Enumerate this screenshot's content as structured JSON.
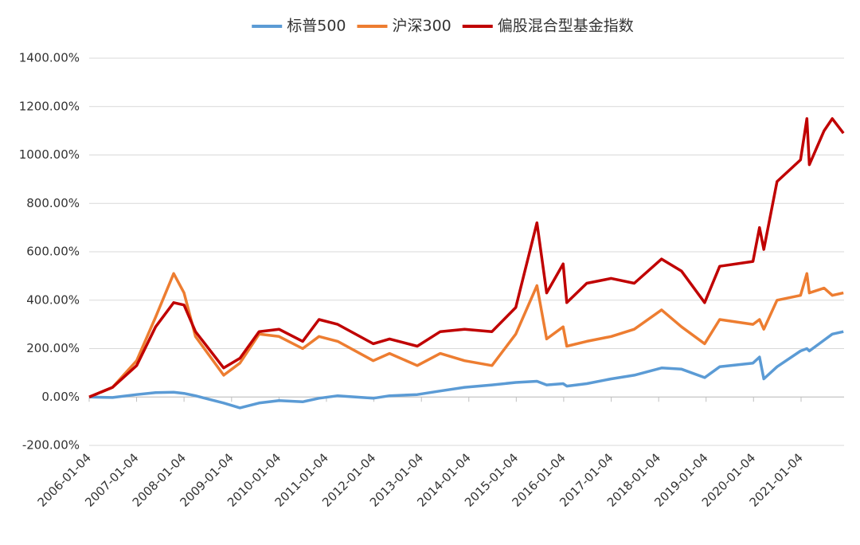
{
  "chart_data": {
    "type": "line",
    "x": [
      "2006-01-04",
      "2006-07-03",
      "2007-01-04",
      "2007-05-30",
      "2007-10-16",
      "2008-01-04",
      "2008-04-01",
      "2008-11-04",
      "2009-03-09",
      "2009-08-04",
      "2010-01-04",
      "2010-07-05",
      "2010-11-08",
      "2011-04-01",
      "2011-12-30",
      "2012-05-04",
      "2012-12-03",
      "2013-05-29",
      "2013-12-02",
      "2014-07-01",
      "2014-12-31",
      "2015-06-12",
      "2015-08-26",
      "2015-12-31",
      "2016-01-28",
      "2016-06-30",
      "2017-01-04",
      "2017-06-30",
      "2018-01-26",
      "2018-06-29",
      "2018-12-24",
      "2019-04-19",
      "2019-12-31",
      "2020-02-19",
      "2020-03-23",
      "2020-07-03",
      "2020-12-31",
      "2021-02-18",
      "2021-03-09",
      "2021-06-30",
      "2021-09-01",
      "2021-11-26"
    ],
    "series": [
      {
        "name": "标普500",
        "color": "#5b9bd5",
        "values": [
          0,
          -2,
          10,
          18,
          20,
          15,
          5,
          -25,
          -45,
          -25,
          -15,
          -20,
          -5,
          5,
          -5,
          5,
          10,
          25,
          40,
          50,
          60,
          65,
          50,
          55,
          45,
          55,
          75,
          90,
          120,
          115,
          80,
          125,
          140,
          165,
          75,
          125,
          190,
          200,
          190,
          235,
          260,
          270
        ]
      },
      {
        "name": "沪深300",
        "color": "#ed7d31",
        "values": [
          0,
          40,
          150,
          330,
          510,
          430,
          250,
          90,
          140,
          260,
          250,
          200,
          250,
          230,
          150,
          180,
          130,
          180,
          150,
          130,
          260,
          460,
          240,
          290,
          210,
          230,
          250,
          280,
          360,
          290,
          220,
          320,
          300,
          320,
          280,
          400,
          420,
          510,
          430,
          450,
          420,
          430
        ]
      },
      {
        "name": "偏股混合型基金指数",
        "color": "#c00000",
        "values": [
          0,
          40,
          130,
          290,
          390,
          380,
          270,
          120,
          160,
          270,
          280,
          230,
          320,
          300,
          220,
          240,
          210,
          270,
          280,
          270,
          370,
          720,
          430,
          550,
          390,
          470,
          490,
          470,
          570,
          520,
          390,
          540,
          560,
          700,
          610,
          890,
          980,
          1150,
          960,
          1100,
          1150,
          1090
        ]
      }
    ],
    "xlim": [
      "2006-01-04",
      "2021-12-01"
    ],
    "xticks": [
      "2006-01-04",
      "2007-01-04",
      "2008-01-04",
      "2009-01-04",
      "2010-01-04",
      "2011-01-04",
      "2012-01-04",
      "2013-01-04",
      "2014-01-04",
      "2015-01-04",
      "2016-01-04",
      "2017-01-04",
      "2018-01-04",
      "2019-01-04",
      "2020-01-04",
      "2021-01-04"
    ],
    "ylim": [
      -200,
      1400
    ],
    "yticks": [
      {
        "value": -200,
        "label": "-200.00%"
      },
      {
        "value": 0,
        "label": "0.00%"
      },
      {
        "value": 200,
        "label": "200.00%"
      },
      {
        "value": 400,
        "label": "400.00%"
      },
      {
        "value": 600,
        "label": "600.00%"
      },
      {
        "value": 800,
        "label": "800.00%"
      },
      {
        "value": 1000,
        "label": "1000.00%"
      },
      {
        "value": 1200,
        "label": "1200.00%"
      },
      {
        "value": 1400,
        "label": "1400.00%"
      }
    ],
    "grid": true,
    "legend": "top"
  }
}
